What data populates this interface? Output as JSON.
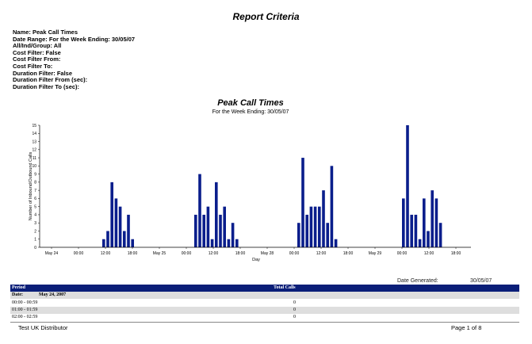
{
  "report": {
    "title": "Report Criteria",
    "criteria": [
      "Name: Peak Call Times",
      "Date Range: For the Week Ending: 30/05/07",
      "All/Ind/Group: All",
      "Cost Filter: False",
      "Cost Filter From:",
      "Cost Filter To:",
      "Duration Filter: False",
      "Duration Filter From (sec):",
      "Duration Filter To (sec):"
    ]
  },
  "chart_data": {
    "type": "bar",
    "title": "Peak Call Times",
    "subtitle": "For the Week Ending: 30/05/07",
    "xlabel": "Day",
    "ylabel": "Number of Inbound/Outbound Calls",
    "ylim": [
      0,
      15
    ],
    "y_ticks": [
      0,
      1,
      2,
      3,
      4,
      5,
      6,
      7,
      8,
      9,
      10,
      11,
      12,
      13,
      14,
      15
    ],
    "grid": false,
    "legend": "none",
    "bar_color": "#0a1e8c",
    "x_ticks": [
      "May 24",
      "00:00",
      "12:00",
      "18:00",
      "May 25",
      "00:00",
      "12:00",
      "18:00",
      "May 28",
      "00:00",
      "12:00",
      "18:00",
      "May 29",
      "00:00",
      "12:00",
      "18:00"
    ],
    "groups": [
      {
        "values": [
          1,
          2,
          8,
          6,
          5,
          2,
          4,
          1
        ]
      },
      {
        "values": [
          4,
          9,
          4,
          5,
          1,
          8,
          4,
          5,
          1,
          3,
          1
        ]
      },
      {
        "values": [
          3,
          11,
          4,
          5,
          5,
          5,
          7,
          3,
          10,
          1
        ]
      },
      {
        "values": [
          6,
          15,
          4,
          4,
          1,
          6,
          2,
          7,
          6,
          3
        ]
      }
    ]
  },
  "generated": {
    "label": "Date Generated:",
    "value": "30/05/07"
  },
  "table": {
    "headers": [
      "Period",
      "Total Calls"
    ],
    "date_label": "Date:",
    "date_value": "May 24, 2007",
    "rows": [
      {
        "period": "00:00 - 00:59",
        "total": "0"
      },
      {
        "period": "01:00 - 01:59",
        "total": "0"
      },
      {
        "period": "02:00 - 02:59",
        "total": "0"
      }
    ]
  },
  "footer": {
    "left": "Test UK Distributor",
    "right": "Page 1 of 8"
  }
}
